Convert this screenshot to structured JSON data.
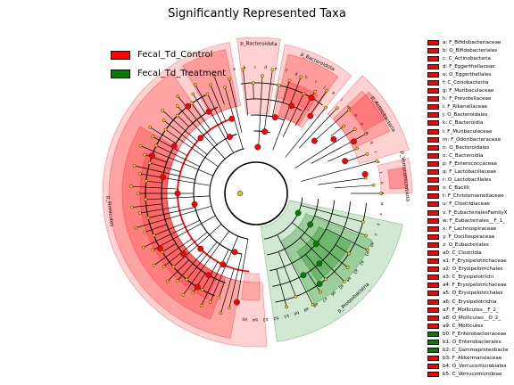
{
  "chart_data": {
    "type": "cladogram",
    "title": "Significantly Represented Taxa",
    "groups": [
      {
        "name": "Fecal_Td_Control",
        "color": "#ff0000"
      },
      {
        "name": "Fecal_Td_Treatment",
        "color": "#008000"
      }
    ],
    "taxa": [
      {
        "key": "a",
        "label": "F_Bifidobacteriaceae",
        "group": "Fecal_Td_Control"
      },
      {
        "key": "b",
        "label": "O_Bifidobacteriales",
        "group": "Fecal_Td_Control"
      },
      {
        "key": "c",
        "label": "C_Actinobacteria",
        "group": "Fecal_Td_Control"
      },
      {
        "key": "d",
        "label": "F_Eggerthellaceae",
        "group": "Fecal_Td_Control"
      },
      {
        "key": "e",
        "label": "O_Eggerthellales",
        "group": "Fecal_Td_Control"
      },
      {
        "key": "f",
        "label": "C_Coriobacteriia",
        "group": "Fecal_Td_Control"
      },
      {
        "key": "g",
        "label": "F_Muribaculaceae",
        "group": "Fecal_Td_Control"
      },
      {
        "key": "h",
        "label": "F_Prevotellaceae",
        "group": "Fecal_Td_Control"
      },
      {
        "key": "i",
        "label": "F_Rikenellaceae",
        "group": "Fecal_Td_Control"
      },
      {
        "key": "j",
        "label": "O_Bacteroidales",
        "group": "Fecal_Td_Control"
      },
      {
        "key": "k",
        "label": "C_Bacteroidia",
        "group": "Fecal_Td_Control"
      },
      {
        "key": "l",
        "label": "F_Muribaculaceae",
        "group": "Fecal_Td_Control"
      },
      {
        "key": "m",
        "label": "F_Odoribacteraceae",
        "group": "Fecal_Td_Control"
      },
      {
        "key": "n",
        "label": "O_Bacteroidales",
        "group": "Fecal_Td_Control"
      },
      {
        "key": "o",
        "label": "C_Bacteroidia",
        "group": "Fecal_Td_Control"
      },
      {
        "key": "p",
        "label": "F_Enterococcaceae",
        "group": "Fecal_Td_Control"
      },
      {
        "key": "q",
        "label": "F_Lactobacillaceae",
        "group": "Fecal_Td_Control"
      },
      {
        "key": "r",
        "label": "O_Lactobacillales",
        "group": "Fecal_Td_Control"
      },
      {
        "key": "s",
        "label": "C_Bacilli",
        "group": "Fecal_Td_Control"
      },
      {
        "key": "t",
        "label": "F_Christensenellaceae",
        "group": "Fecal_Td_Control"
      },
      {
        "key": "u",
        "label": "F_Clostridiaceae",
        "group": "Fecal_Td_Control"
      },
      {
        "key": "v",
        "label": "F_EubacterialesFamilyX",
        "group": "Fecal_Td_Control"
      },
      {
        "key": "w",
        "label": "F_Eubacteriales__F_1_",
        "group": "Fecal_Td_Control"
      },
      {
        "key": "x",
        "label": "F_Lachnospiraceae",
        "group": "Fecal_Td_Control"
      },
      {
        "key": "y",
        "label": "F_Oscillospiraceae",
        "group": "Fecal_Td_Control"
      },
      {
        "key": "z",
        "label": "O_Eubacteriales",
        "group": "Fecal_Td_Control"
      },
      {
        "key": "a0",
        "label": "C_Clostridia",
        "group": "Fecal_Td_Control"
      },
      {
        "key": "a1",
        "label": "F_Erysipelotrichaceae",
        "group": "Fecal_Td_Control"
      },
      {
        "key": "a2",
        "label": "O_Erysipelotrichales",
        "group": "Fecal_Td_Control"
      },
      {
        "key": "a3",
        "label": "C_Erysipelotrichi",
        "group": "Fecal_Td_Control"
      },
      {
        "key": "a4",
        "label": "F_Erysipelotrichaceae",
        "group": "Fecal_Td_Control"
      },
      {
        "key": "a5",
        "label": "O_Erysipelotrichales",
        "group": "Fecal_Td_Control"
      },
      {
        "key": "a6",
        "label": "C_Erysipelotrichia",
        "group": "Fecal_Td_Control"
      },
      {
        "key": "a7",
        "label": "F_Mollicutes__F_2_",
        "group": "Fecal_Td_Control"
      },
      {
        "key": "a8",
        "label": "O_Mollicutes__O_2_",
        "group": "Fecal_Td_Control"
      },
      {
        "key": "a9",
        "label": "C_Mollicutes",
        "group": "Fecal_Td_Control"
      },
      {
        "key": "b0",
        "label": "F_Enterobacteriaceae",
        "group": "Fecal_Td_Treatment"
      },
      {
        "key": "b1",
        "label": "O_Enterobacterales",
        "group": "Fecal_Td_Treatment"
      },
      {
        "key": "b2",
        "label": "C_Gammaproteobacte",
        "group": "Fecal_Td_Treatment"
      },
      {
        "key": "b3",
        "label": "F_Akkermansiaceae",
        "group": "Fecal_Td_Control"
      },
      {
        "key": "b4",
        "label": "O_Verrucomicrobiales",
        "group": "Fecal_Td_Control"
      },
      {
        "key": "b5",
        "label": "C_Verrucomicrobiae",
        "group": "Fecal_Td_Control"
      }
    ],
    "phyla": [
      {
        "label": "p_Bacteroidota",
        "group": "Fecal_Td_Control"
      },
      {
        "label": "p_Bacteroidota",
        "group": "Fecal_Td_Control"
      },
      {
        "label": "p_Actinobacteria",
        "group": "Fecal_Td_Control"
      },
      {
        "label": "p_Verrucomicrobiota",
        "group": "Fecal_Td_Control"
      },
      {
        "label": "p_Proteobacteria",
        "group": "Fecal_Td_Treatment"
      },
      {
        "label": "p_Firmicutes",
        "group": "Fecal_Td_Control"
      }
    ],
    "sector_labels": [
      "a",
      "b",
      "c",
      "d",
      "e",
      "f",
      "g",
      "h",
      "i",
      "j",
      "k",
      "l",
      "m",
      "n",
      "o",
      "p",
      "q",
      "r",
      "s",
      "t",
      "u",
      "v",
      "w",
      "x",
      "y",
      "z",
      "a0",
      "a1",
      "a2",
      "a3",
      "a4",
      "a5",
      "a6",
      "a7",
      "a8",
      "a9",
      "b0",
      "b1",
      "b2",
      "b3",
      "b4",
      "b5"
    ]
  }
}
